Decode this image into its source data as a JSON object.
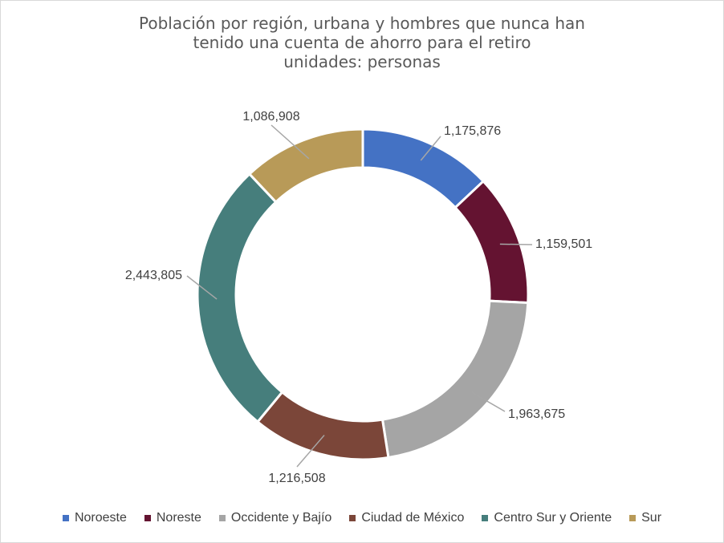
{
  "chart_data": {
    "type": "pie",
    "title": [
      "Población por región, urbana y hombres que nunca han",
      "tenido una cuenta de ahorro para el retiro",
      "unidades: personas"
    ],
    "categories": [
      "Noroeste",
      "Noreste",
      "Occidente y Bajío",
      "Ciudad de México",
      "Centro Sur y Oriente",
      "Sur"
    ],
    "values": [
      1175876,
      1159501,
      1963675,
      1216508,
      2443805,
      1086908
    ],
    "labels": [
      "1,175,876",
      "1,159,501",
      "1,963,675",
      "1,216,508",
      "2,443,805",
      "1,086,908"
    ],
    "colors": [
      "#4472C4",
      "#641331",
      "#A5A5A5",
      "#7B4639",
      "#467E7C",
      "#B89A58"
    ],
    "legend_position": "bottom",
    "donut": true
  }
}
